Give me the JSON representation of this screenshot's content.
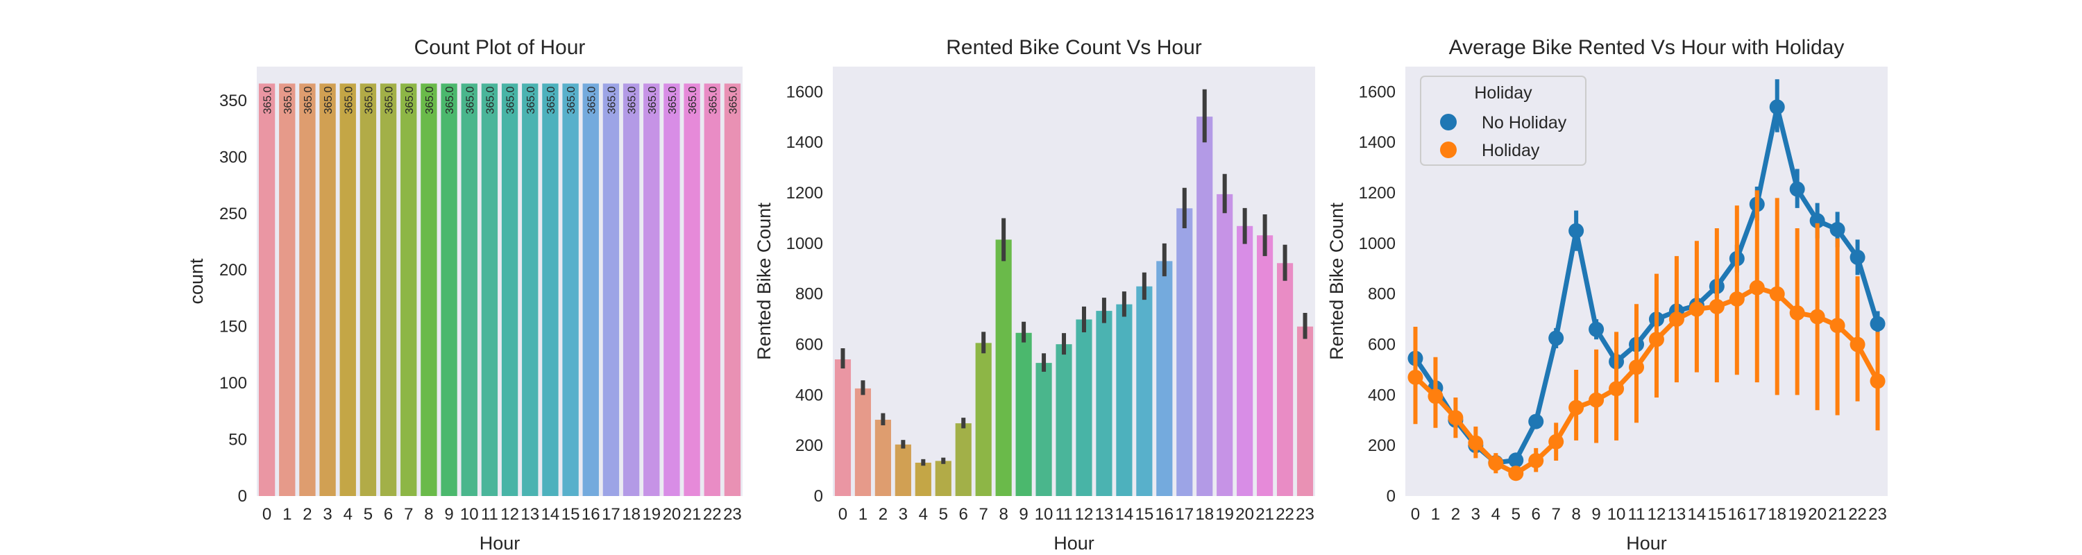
{
  "chart_data": [
    {
      "type": "bar",
      "title": "Count Plot of Hour",
      "xlabel": "Hour",
      "ylabel": "count",
      "ylim": [
        0,
        380
      ],
      "yticks": [
        0,
        50,
        100,
        150,
        200,
        250,
        300,
        350
      ],
      "grid": false,
      "categories": [
        "0",
        "1",
        "2",
        "3",
        "4",
        "5",
        "6",
        "7",
        "8",
        "9",
        "10",
        "11",
        "12",
        "13",
        "14",
        "15",
        "16",
        "17",
        "18",
        "19",
        "20",
        "21",
        "22",
        "23"
      ],
      "values": [
        365,
        365,
        365,
        365,
        365,
        365,
        365,
        365,
        365,
        365,
        365,
        365,
        365,
        365,
        365,
        365,
        365,
        365,
        365,
        365,
        365,
        365,
        365,
        365
      ],
      "bar_labels": [
        "365.0",
        "365.0",
        "365.0",
        "365.0",
        "365.0",
        "365.0",
        "365.0",
        "365.0",
        "365.0",
        "365.0",
        "365.0",
        "365.0",
        "365.0",
        "365.0",
        "365.0",
        "365.0",
        "365.0",
        "365.0",
        "365.0",
        "365.0",
        "365.0",
        "365.0",
        "365.0",
        "365.0"
      ],
      "colors": [
        "#ea96a3",
        "#e69a8a",
        "#de9d6f",
        "#d1a053",
        "#c4a646",
        "#b2ab47",
        "#a2b048",
        "#8db646",
        "#6aba4a",
        "#4bb86d",
        "#4ab68c",
        "#4ab59a",
        "#48b4a6",
        "#4bb3b1",
        "#4db1bd",
        "#58b0cb",
        "#74aadd",
        "#9ca4e6",
        "#b39ae6",
        "#c693e6",
        "#d88de6",
        "#e68ad9",
        "#e98cc5",
        "#e991b4"
      ]
    },
    {
      "type": "bar",
      "title": "Rented Bike Count Vs Hour",
      "xlabel": "Hour",
      "ylabel": "Rented Bike Count",
      "ylim": [
        0,
        1700
      ],
      "yticks": [
        0,
        200,
        400,
        600,
        800,
        1000,
        1200,
        1400,
        1600
      ],
      "grid": false,
      "categories": [
        "0",
        "1",
        "2",
        "3",
        "4",
        "5",
        "6",
        "7",
        "8",
        "9",
        "10",
        "11",
        "12",
        "13",
        "14",
        "15",
        "16",
        "17",
        "18",
        "19",
        "20",
        "21",
        "22",
        "23"
      ],
      "values": [
        541,
        426,
        302,
        204,
        132,
        139,
        288,
        606,
        1015,
        646,
        527,
        601,
        699,
        733,
        759,
        830,
        930,
        1139,
        1502,
        1195,
        1069,
        1032,
        922,
        671
      ],
      "error_low": [
        505,
        400,
        280,
        188,
        120,
        127,
        268,
        565,
        930,
        608,
        492,
        560,
        648,
        685,
        710,
        777,
        870,
        1060,
        1400,
        1120,
        998,
        950,
        852,
        622
      ],
      "error_high": [
        585,
        458,
        328,
        222,
        146,
        152,
        310,
        650,
        1100,
        690,
        565,
        645,
        750,
        785,
        810,
        885,
        1000,
        1220,
        1610,
        1275,
        1140,
        1115,
        995,
        725
      ],
      "colors": [
        "#ea96a3",
        "#e69a8a",
        "#de9d6f",
        "#d1a053",
        "#c4a646",
        "#b2ab47",
        "#a2b048",
        "#8db646",
        "#6aba4a",
        "#4bb86d",
        "#4ab68c",
        "#4ab59a",
        "#48b4a6",
        "#4bb3b1",
        "#4db1bd",
        "#58b0cb",
        "#74aadd",
        "#9ca4e6",
        "#b39ae6",
        "#c693e6",
        "#d88de6",
        "#e68ad9",
        "#e98cc5",
        "#e991b4"
      ]
    },
    {
      "type": "line",
      "title": "Average Bike Rented Vs Hour with Holiday",
      "xlabel": "Hour",
      "ylabel": "Rented Bike Count",
      "ylim": [
        0,
        1700
      ],
      "yticks": [
        0,
        200,
        400,
        600,
        800,
        1000,
        1200,
        1400,
        1600
      ],
      "grid": false,
      "legend_title": "Holiday",
      "legend_position": "upper-left",
      "categories": [
        "0",
        "1",
        "2",
        "3",
        "4",
        "5",
        "6",
        "7",
        "8",
        "9",
        "10",
        "11",
        "12",
        "13",
        "14",
        "15",
        "16",
        "17",
        "18",
        "19",
        "20",
        "21",
        "22",
        "23"
      ],
      "series": [
        {
          "name": "No Holiday",
          "color": "#1f77b4",
          "values": [
            545,
            428,
            300,
            200,
            132,
            142,
            295,
            625,
            1050,
            660,
            532,
            600,
            700,
            732,
            755,
            830,
            940,
            1155,
            1540,
            1215,
            1090,
            1055,
            945,
            682
          ],
          "error_low": [
            515,
            400,
            280,
            185,
            120,
            130,
            275,
            585,
            970,
            620,
            500,
            565,
            655,
            690,
            710,
            785,
            885,
            1090,
            1440,
            1140,
            1020,
            985,
            875,
            632
          ],
          "error_high": [
            580,
            455,
            320,
            215,
            145,
            155,
            315,
            665,
            1130,
            700,
            568,
            640,
            745,
            775,
            800,
            875,
            995,
            1225,
            1650,
            1295,
            1160,
            1125,
            1015,
            732
          ]
        },
        {
          "name": "Holiday",
          "color": "#ff7f0e",
          "values": [
            470,
            395,
            310,
            210,
            130,
            90,
            140,
            215,
            350,
            380,
            425,
            510,
            620,
            700,
            740,
            750,
            780,
            825,
            800,
            725,
            710,
            675,
            600,
            455
          ],
          "error_low": [
            285,
            270,
            230,
            150,
            90,
            70,
            95,
            140,
            220,
            210,
            220,
            290,
            390,
            450,
            490,
            450,
            480,
            450,
            400,
            400,
            340,
            320,
            375,
            260
          ],
          "error_high": [
            670,
            550,
            390,
            275,
            170,
            115,
            190,
            290,
            500,
            580,
            650,
            760,
            880,
            950,
            1010,
            1060,
            1150,
            1210,
            1180,
            1060,
            1080,
            1020,
            870,
            650
          ]
        }
      ]
    }
  ]
}
